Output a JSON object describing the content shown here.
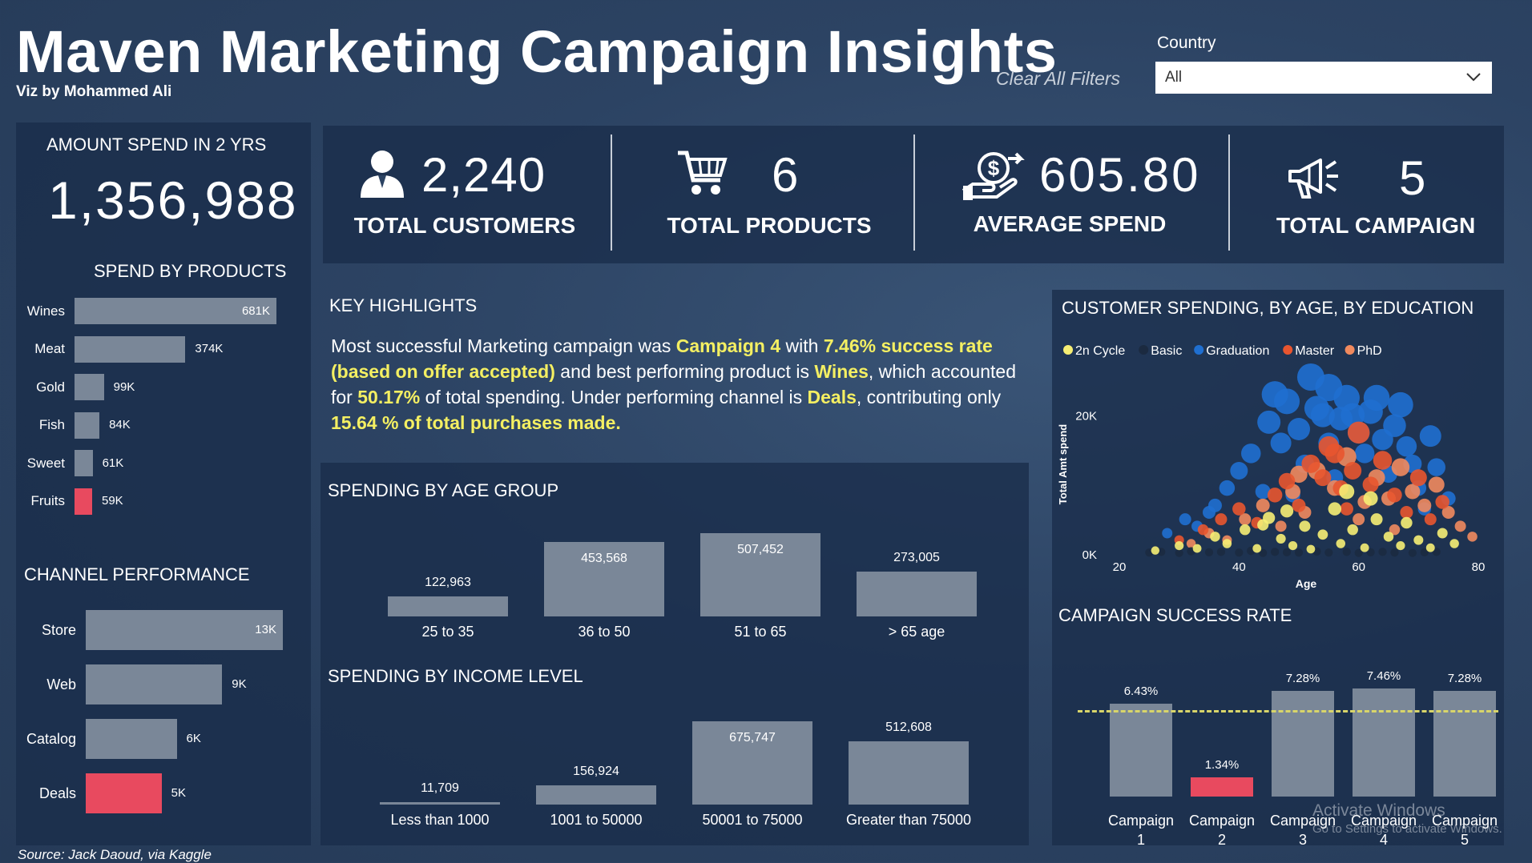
{
  "header": {
    "title": "Maven Marketing Campaign Insights",
    "subtitle": "Viz by Mohammed Ali",
    "clear_filters": "Clear All Filters",
    "country_label": "Country",
    "country_value": "All"
  },
  "amount_spend": {
    "label": "AMOUNT SPEND IN 2 YRS",
    "value": "1,356,988"
  },
  "kpis": [
    {
      "value": "2,240",
      "label": "TOTAL CUSTOMERS",
      "icon": "person-icon"
    },
    {
      "value": "6",
      "label": "TOTAL PRODUCTS",
      "icon": "cart-icon"
    },
    {
      "value": "605.80",
      "label": "AVERAGE SPEND",
      "icon": "money-hand-icon"
    },
    {
      "value": "5",
      "label": "TOTAL CAMPAIGN",
      "icon": "megaphone-icon"
    }
  ],
  "key_highlights": {
    "title": "KEY HIGHLIGHTS",
    "p1": "Most successful Marketing campaign was ",
    "h1": "Campaign 4",
    "p2": " with ",
    "h2": "7.46% success rate (based on offer accepted)",
    "p3": " and best performing product is ",
    "h3": "Wines",
    "p4": ", which accounted for ",
    "h4": "50.17%",
    "p5": " of total spending. Under performing channel is ",
    "h5": "Deals",
    "p6": ", contributing only ",
    "h6": "15.64 % of total purchases made."
  },
  "colors": {
    "bar": "#7a8798",
    "highlight_bar": "#e84a5f",
    "highlight_text": "#f4ef62",
    "panel": "#1a2d4a",
    "edu_2n_cycle": "#f6ee74",
    "edu_basic": "#1b2a40",
    "edu_graduation": "#1f6fd0",
    "edu_master": "#e8552f",
    "edu_phd": "#f18a5e"
  },
  "source": "Source: Jack Daoud, via Kaggle",
  "watermark": {
    "line1": "Activate Windows",
    "line2": "Go to Settings to activate Windows."
  },
  "chart_data": [
    {
      "id": "spend_by_products",
      "type": "bar",
      "orientation": "horizontal",
      "title": "SPEND BY PRODUCTS",
      "categories": [
        "Wines",
        "Meat",
        "Gold",
        "Fish",
        "Sweet",
        "Fruits"
      ],
      "values": [
        681000,
        374000,
        99000,
        84000,
        61000,
        59000
      ],
      "labels": [
        "681K",
        "374K",
        "99K",
        "84K",
        "61K",
        "59K"
      ],
      "highlight": [
        "Fruits"
      ]
    },
    {
      "id": "channel_performance",
      "type": "bar",
      "orientation": "horizontal",
      "title": "CHANNEL PERFORMANCE",
      "categories": [
        "Store",
        "Web",
        "Catalog",
        "Deals"
      ],
      "values": [
        13000,
        9000,
        6000,
        5000
      ],
      "labels": [
        "13K",
        "9K",
        "6K",
        "5K"
      ],
      "highlight": [
        "Deals"
      ]
    },
    {
      "id": "spending_by_age_group",
      "type": "bar",
      "title": "SPENDING BY AGE GROUP",
      "categories": [
        "25 to 35",
        "36 to 50",
        "51 to 65",
        "> 65 age"
      ],
      "values": [
        122963,
        453568,
        507452,
        273005
      ],
      "labels": [
        "122,963",
        "453,568",
        "507,452",
        "273,005"
      ]
    },
    {
      "id": "spending_by_income_level",
      "type": "bar",
      "title": "SPENDING BY INCOME LEVEL",
      "categories": [
        "Less than 1000",
        "1001 to 50000",
        "50001 to 75000",
        "Greater than 75000"
      ],
      "values": [
        11709,
        156924,
        675747,
        512608
      ],
      "labels": [
        "11,709",
        "156,924",
        "675,747",
        "512,608"
      ]
    },
    {
      "id": "customer_spending_scatter",
      "type": "scatter",
      "title": "CUSTOMER SPENDING, BY AGE, BY EDUCATION",
      "xlabel": "Age",
      "ylabel": "Total Amt spend",
      "xlim": [
        20,
        80
      ],
      "ylim": [
        0,
        30000
      ],
      "xticks": [
        "20",
        "40",
        "60",
        "80"
      ],
      "yticks": [
        "0K",
        "20K"
      ],
      "legend": [
        "2n Cycle",
        "Basic",
        "Graduation",
        "Master",
        "PhD"
      ],
      "legend_position": "top-left",
      "series": [
        {
          "name": "2n Cycle",
          "points": [
            [
              26,
              500
            ],
            [
              30,
              1200
            ],
            [
              33,
              800
            ],
            [
              36,
              2500
            ],
            [
              38,
              1500
            ],
            [
              41,
              3500
            ],
            [
              43,
              800
            ],
            [
              45,
              5200
            ],
            [
              47,
              2200
            ],
            [
              49,
              1200
            ],
            [
              51,
              4000
            ],
            [
              52,
              700
            ],
            [
              54,
              2800
            ],
            [
              56,
              6500
            ],
            [
              57,
              1500
            ],
            [
              59,
              3500
            ],
            [
              61,
              900
            ],
            [
              63,
              5000
            ],
            [
              65,
              2500
            ],
            [
              67,
              1200
            ],
            [
              68,
              4500
            ],
            [
              70,
              2000
            ],
            [
              72,
              900
            ],
            [
              74,
              3000
            ],
            [
              76,
              1500
            ],
            [
              44,
              4200
            ],
            [
              58,
              9000
            ],
            [
              62,
              8000
            ],
            [
              48,
              6200
            ]
          ]
        },
        {
          "name": "Basic",
          "points": [
            [
              25,
              200
            ],
            [
              27,
              300
            ],
            [
              30,
              150
            ],
            [
              32,
              400
            ],
            [
              35,
              250
            ],
            [
              37,
              300
            ],
            [
              40,
              200
            ],
            [
              42,
              450
            ],
            [
              44,
              150
            ],
            [
              46,
              300
            ],
            [
              48,
              250
            ],
            [
              50,
              200
            ],
            [
              53,
              350
            ],
            [
              55,
              200
            ],
            [
              58,
              300
            ],
            [
              60,
              150
            ],
            [
              62,
              250
            ],
            [
              64,
              300
            ],
            [
              66,
              200
            ],
            [
              69,
              150
            ],
            [
              71,
              250
            ],
            [
              73,
              300
            ]
          ]
        },
        {
          "name": "Graduation",
          "points": [
            [
              28,
              3000
            ],
            [
              31,
              5000
            ],
            [
              33,
              4000
            ],
            [
              36,
              7000
            ],
            [
              38,
              9500
            ],
            [
              40,
              12000
            ],
            [
              42,
              14500
            ],
            [
              44,
              9000
            ],
            [
              45,
              19000
            ],
            [
              47,
              16000
            ],
            [
              48,
              22000
            ],
            [
              50,
              18000
            ],
            [
              51,
              13000
            ],
            [
              52,
              25500
            ],
            [
              53,
              21000
            ],
            [
              54,
              20000
            ],
            [
              55,
              24000
            ],
            [
              55,
              16000
            ],
            [
              56,
              11000
            ],
            [
              57,
              19500
            ],
            [
              58,
              22500
            ],
            [
              60,
              17500
            ],
            [
              61,
              14500
            ],
            [
              62,
              20500
            ],
            [
              63,
              22500
            ],
            [
              64,
              16500
            ],
            [
              65,
              11500
            ],
            [
              66,
              18500
            ],
            [
              67,
              21500
            ],
            [
              68,
              15500
            ],
            [
              69,
              13000
            ],
            [
              70,
              9500
            ],
            [
              71,
              6500
            ],
            [
              72,
              17000
            ],
            [
              73,
              12500
            ],
            [
              75,
              8000
            ],
            [
              46,
              23000
            ],
            [
              49,
              8500
            ],
            [
              59,
              20000
            ],
            [
              35,
              6000
            ]
          ]
        },
        {
          "name": "Master",
          "points": [
            [
              30,
              2000
            ],
            [
              34,
              3500
            ],
            [
              37,
              5000
            ],
            [
              40,
              6500
            ],
            [
              43,
              4500
            ],
            [
              46,
              8500
            ],
            [
              48,
              10500
            ],
            [
              50,
              7000
            ],
            [
              52,
              13000
            ],
            [
              54,
              11000
            ],
            [
              55,
              15500
            ],
            [
              57,
              9500
            ],
            [
              59,
              12000
            ],
            [
              60,
              17500
            ],
            [
              62,
              10000
            ],
            [
              64,
              13500
            ],
            [
              66,
              8500
            ],
            [
              68,
              6000
            ],
            [
              70,
              11000
            ],
            [
              72,
              5000
            ],
            [
              74,
              7500
            ],
            [
              56,
              14500
            ],
            [
              58,
              6500
            ]
          ]
        },
        {
          "name": "PhD",
          "points": [
            [
              32,
              1500
            ],
            [
              35,
              3000
            ],
            [
              38,
              2000
            ],
            [
              41,
              5000
            ],
            [
              44,
              7000
            ],
            [
              47,
              4000
            ],
            [
              49,
              9000
            ],
            [
              51,
              6000
            ],
            [
              53,
              12000
            ],
            [
              56,
              9500
            ],
            [
              58,
              14000
            ],
            [
              61,
              7500
            ],
            [
              63,
              11000
            ],
            [
              65,
              8000
            ],
            [
              67,
              12500
            ],
            [
              69,
              9000
            ],
            [
              71,
              7000
            ],
            [
              73,
              10000
            ],
            [
              75,
              6000
            ],
            [
              77,
              4000
            ],
            [
              79,
              2500
            ],
            [
              50,
              11500
            ],
            [
              60,
              5000
            ],
            [
              66,
              3500
            ]
          ]
        }
      ]
    },
    {
      "id": "campaign_success_rate",
      "type": "bar",
      "title": "CAMPAIGN SUCCESS RATE",
      "categories": [
        "Campaign 1",
        "Campaign 2",
        "Campaign 3",
        "Campaign 4",
        "Campaign 5"
      ],
      "values": [
        6.43,
        1.34,
        7.28,
        7.46,
        7.28
      ],
      "labels": [
        "6.43%",
        "1.34%",
        "7.28%",
        "7.46%",
        "7.28%"
      ],
      "cat_lines": [
        [
          "Campaign",
          "1"
        ],
        [
          "Campaign",
          "2"
        ],
        [
          "Campaign",
          "3"
        ],
        [
          "Campaign",
          "4"
        ],
        [
          "Campaign",
          "5"
        ]
      ],
      "highlight": [
        "Campaign 2"
      ],
      "reference_line": "average (dashed)"
    }
  ]
}
